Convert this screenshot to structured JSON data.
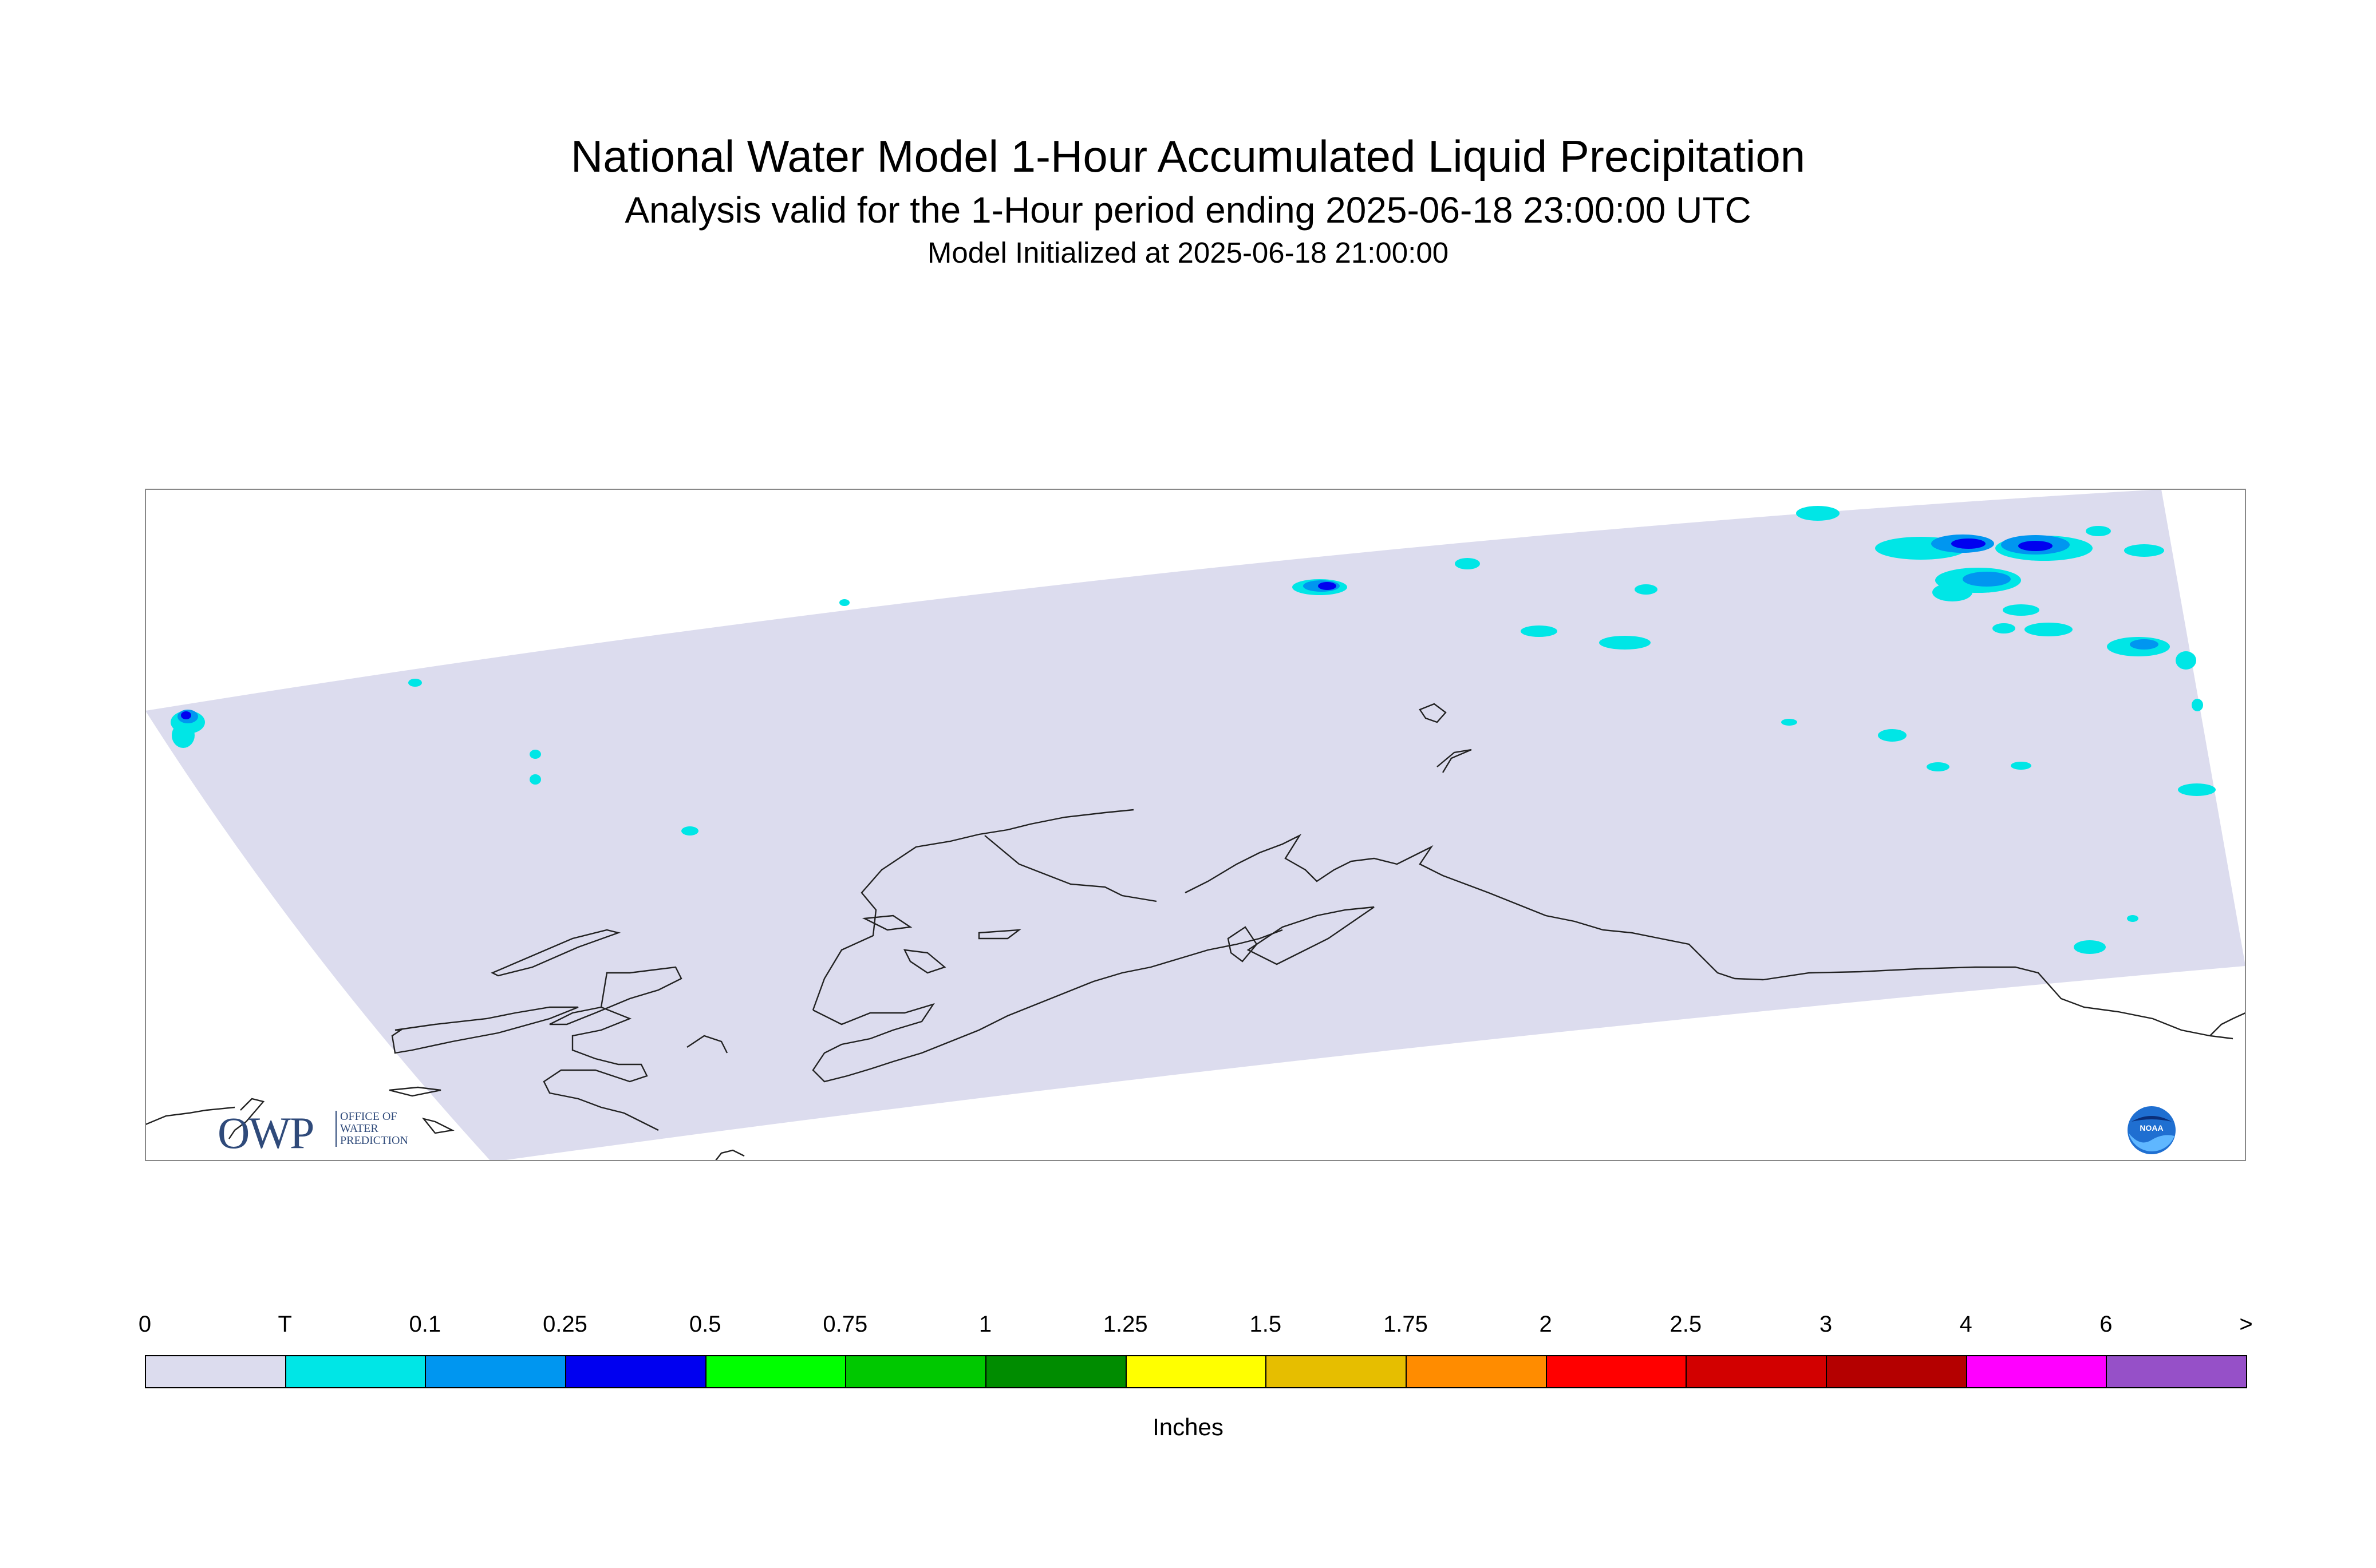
{
  "title": {
    "line1": "National Water Model 1-Hour Accumulated Liquid Precipitation",
    "line2": "Analysis valid for the 1-Hour period ending 2025-06-18 23:00:00 UTC",
    "line3": "Model Initialized at 2025-06-18 21:00:00"
  },
  "colors": {
    "domain_fill": "#dcdcee",
    "coast": "#222222",
    "map_frame": "#888888"
  },
  "legend": {
    "units": "Inches",
    "ticks": [
      "0",
      "T",
      "0.1",
      "0.25",
      "0.5",
      "0.75",
      "1",
      "1.25",
      "1.5",
      "1.75",
      "2",
      "2.5",
      "3",
      "4",
      "6",
      ">"
    ],
    "colors": [
      "#dcdcee",
      "#00e6e6",
      "#0096f0",
      "#0000f0",
      "#00ff00",
      "#00c800",
      "#008c00",
      "#ffff00",
      "#e6be00",
      "#ff8c00",
      "#ff0000",
      "#d20000",
      "#b40000",
      "#ff00ff",
      "#9650c8"
    ]
  },
  "logos": {
    "owp_main": "OWP",
    "owp_sub": [
      "OFFICE OF",
      "WATER",
      "PREDICTION"
    ],
    "noaa": "NOAA"
  }
}
